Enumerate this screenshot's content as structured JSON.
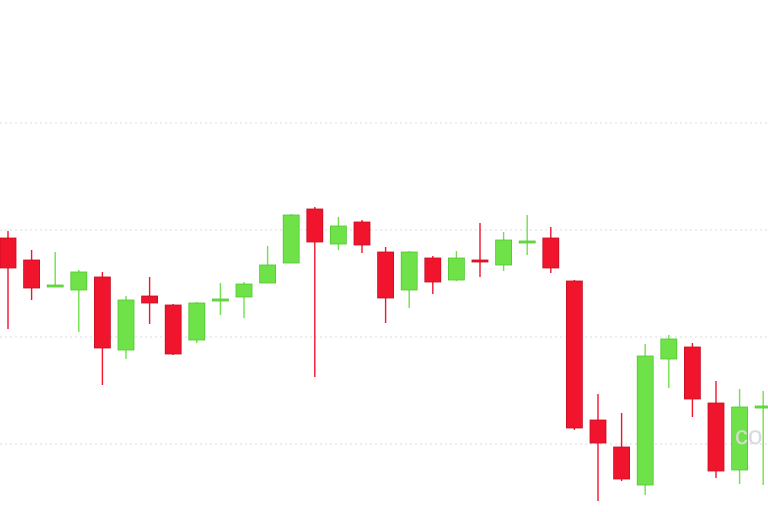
{
  "chart_data": {
    "type": "candlestick",
    "title": "",
    "xlabel": "",
    "ylabel": "",
    "grid": true,
    "ylim": [
      0,
      512
    ],
    "gridlines": [
      389,
      282,
      175,
      68
    ],
    "colors": {
      "up": "#6fe24a",
      "down": "#f0142d",
      "grid": "#d8dbe6"
    },
    "watermark": "co",
    "candles": [
      {
        "o": 274,
        "h": 281,
        "l": 183,
        "c": 244
      },
      {
        "o": 252,
        "h": 262,
        "l": 212,
        "c": 224
      },
      {
        "o": 226,
        "h": 260,
        "l": 225,
        "c": 227
      },
      {
        "o": 222,
        "h": 242,
        "l": 180,
        "c": 240
      },
      {
        "o": 235,
        "h": 240,
        "l": 127,
        "c": 164
      },
      {
        "o": 162,
        "h": 216,
        "l": 153,
        "c": 212
      },
      {
        "o": 216,
        "h": 235,
        "l": 188,
        "c": 209
      },
      {
        "o": 207,
        "h": 208,
        "l": 157,
        "c": 158
      },
      {
        "o": 172,
        "h": 210,
        "l": 169,
        "c": 209
      },
      {
        "o": 212,
        "h": 229,
        "l": 197,
        "c": 213
      },
      {
        "o": 215,
        "h": 230,
        "l": 194,
        "c": 228
      },
      {
        "o": 229,
        "h": 266,
        "l": 229,
        "c": 247
      },
      {
        "o": 249,
        "h": 298,
        "l": 249,
        "c": 297
      },
      {
        "o": 303,
        "h": 305,
        "l": 135,
        "c": 270
      },
      {
        "o": 268,
        "h": 295,
        "l": 262,
        "c": 286
      },
      {
        "o": 290,
        "h": 292,
        "l": 259,
        "c": 267
      },
      {
        "o": 260,
        "h": 265,
        "l": 189,
        "c": 214
      },
      {
        "o": 222,
        "h": 261,
        "l": 204,
        "c": 260
      },
      {
        "o": 254,
        "h": 256,
        "l": 218,
        "c": 230
      },
      {
        "o": 232,
        "h": 261,
        "l": 231,
        "c": 254
      },
      {
        "o": 252,
        "h": 289,
        "l": 235,
        "c": 250
      },
      {
        "o": 247,
        "h": 280,
        "l": 241,
        "c": 272
      },
      {
        "o": 270,
        "h": 297,
        "l": 257,
        "c": 271
      },
      {
        "o": 274,
        "h": 285,
        "l": 239,
        "c": 244
      },
      {
        "o": 231,
        "h": 232,
        "l": 82,
        "c": 84
      },
      {
        "o": 92,
        "h": 118,
        "l": 11,
        "c": 69
      },
      {
        "o": 65,
        "h": 99,
        "l": 31,
        "c": 33
      },
      {
        "o": 27,
        "h": 168,
        "l": 17,
        "c": 156
      },
      {
        "o": 153,
        "h": 177,
        "l": 124,
        "c": 173
      },
      {
        "o": 165,
        "h": 169,
        "l": 95,
        "c": 113
      },
      {
        "o": 109,
        "h": 131,
        "l": 34,
        "c": 41
      },
      {
        "o": 42,
        "h": 123,
        "l": 28,
        "c": 105
      },
      {
        "o": 105,
        "h": 121,
        "l": 27,
        "c": 106
      }
    ]
  }
}
